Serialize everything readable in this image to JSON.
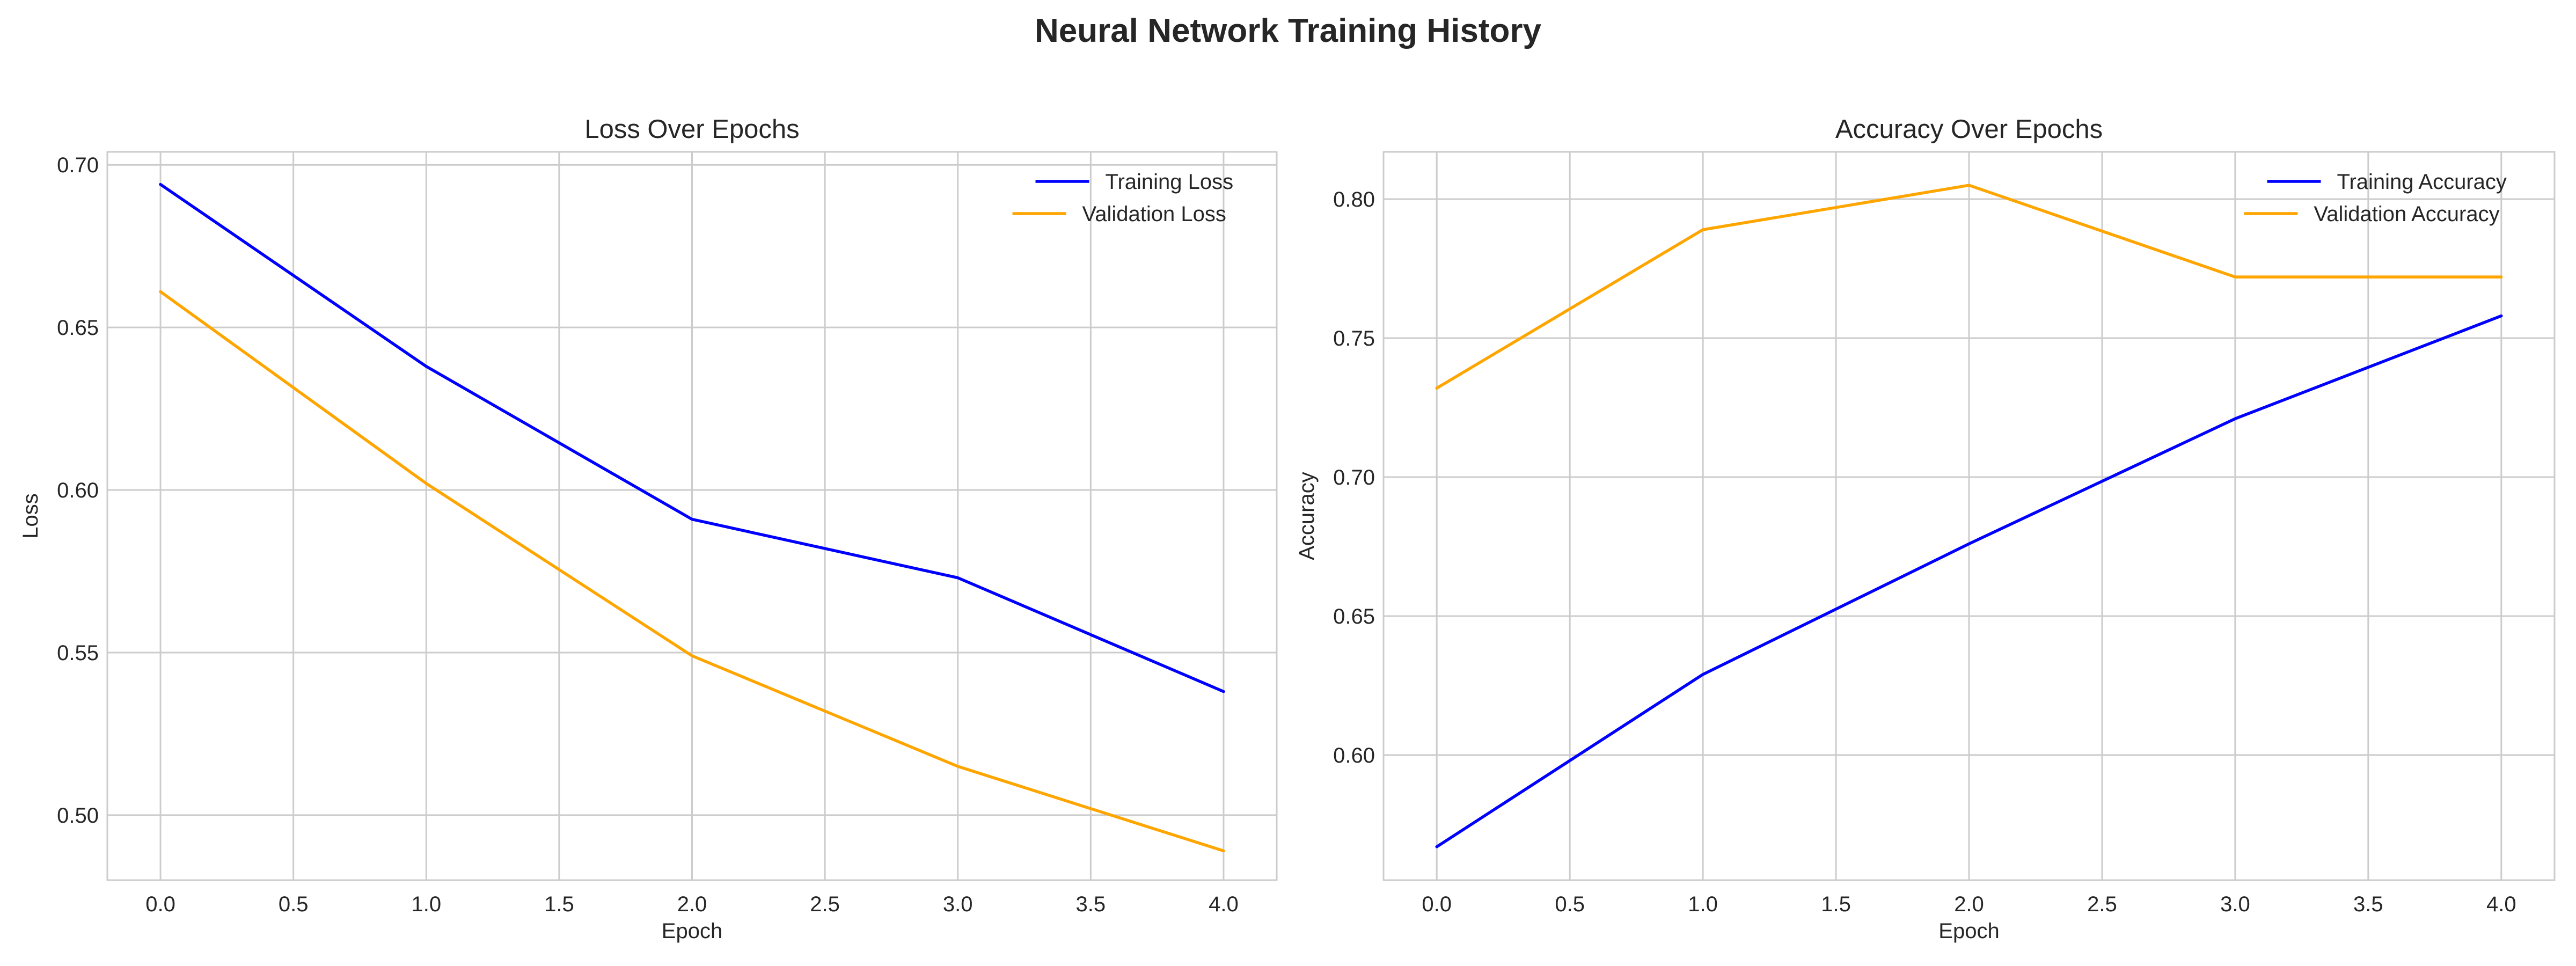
{
  "figure_title": "Neural Network Training History",
  "chart_data": [
    {
      "type": "line",
      "title": "Loss Over Epochs",
      "xlabel": "Epoch",
      "ylabel": "Loss",
      "xlim": [
        -0.2,
        4.2
      ],
      "ylim": [
        0.48,
        0.704
      ],
      "xticks": [
        "0.0",
        "0.5",
        "1.0",
        "1.5",
        "2.0",
        "2.5",
        "3.0",
        "3.5",
        "4.0"
      ],
      "yticks": [
        "0.50",
        "0.55",
        "0.60",
        "0.65",
        "0.70"
      ],
      "grid": true,
      "legend_position": "top-right",
      "x": [
        0,
        1,
        2,
        3,
        4
      ],
      "series": [
        {
          "name": "Training Loss",
          "color": "#0000ff",
          "values": [
            0.694,
            0.638,
            0.591,
            0.573,
            0.538
          ]
        },
        {
          "name": "Validation Loss",
          "color": "#ffa500",
          "values": [
            0.661,
            0.602,
            0.549,
            0.515,
            0.489
          ]
        }
      ]
    },
    {
      "type": "line",
      "title": "Accuracy Over Epochs",
      "xlabel": "Epoch",
      "ylabel": "Accuracy",
      "xlim": [
        -0.2,
        4.2
      ],
      "ylim": [
        0.555,
        0.817
      ],
      "xticks": [
        "0.0",
        "0.5",
        "1.0",
        "1.5",
        "2.0",
        "2.5",
        "3.0",
        "3.5",
        "4.0"
      ],
      "yticks": [
        "0.60",
        "0.65",
        "0.70",
        "0.75",
        "0.80"
      ],
      "grid": true,
      "legend_position": "top-right",
      "x": [
        0,
        1,
        2,
        3,
        4
      ],
      "series": [
        {
          "name": "Training Accuracy",
          "color": "#0000ff",
          "values": [
            0.567,
            0.629,
            0.676,
            0.721,
            0.758
          ]
        },
        {
          "name": "Validation Accuracy",
          "color": "#ffa500",
          "values": [
            0.732,
            0.789,
            0.805,
            0.772,
            0.772
          ]
        }
      ]
    }
  ]
}
